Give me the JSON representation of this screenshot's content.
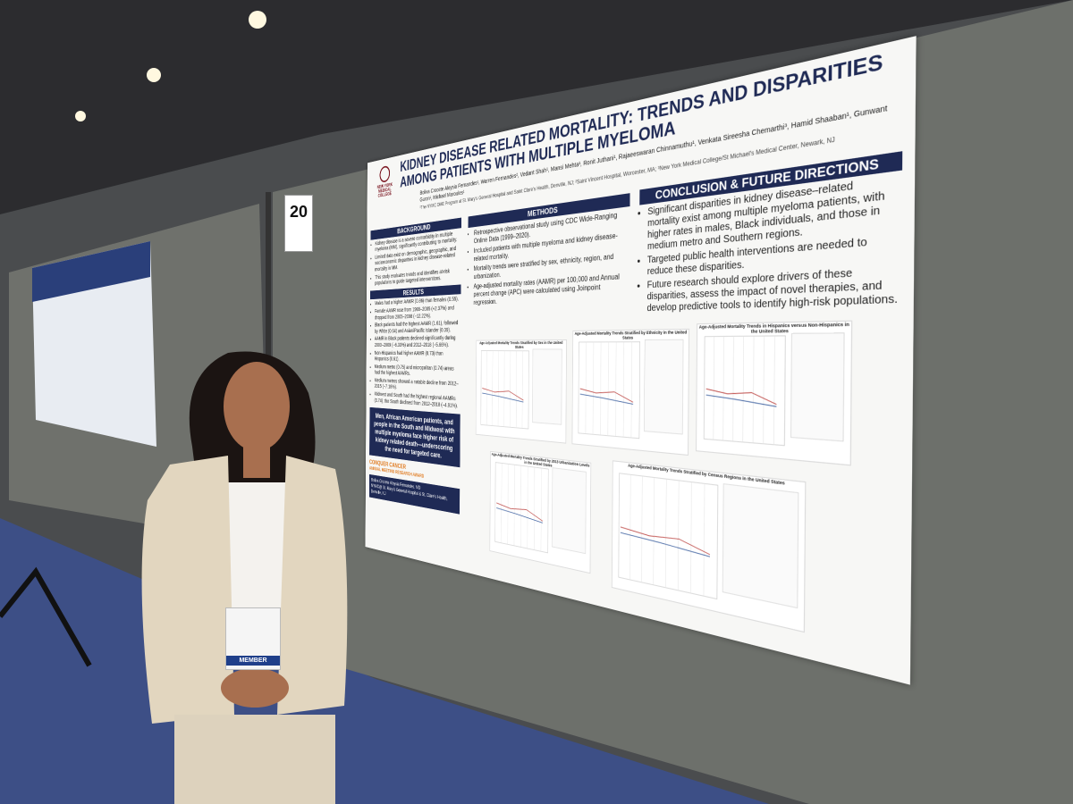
{
  "board_number": "20",
  "poster": {
    "logo": "NEW YORK MEDICAL COLLEGE",
    "title": "KIDNEY DISEASE RELATED MORTALITY: TRENDS AND DISPARITIES AMONG PATIENTS WITH MULTIPLE MYELOMA",
    "authors": "Boliva Crocete Aloysia Fernandes¹, Warren Fernandes², Vedant Shah¹, Mansi Mehta¹, Ronit Juthani¹, Rajaeeswaran Chinnamuthu¹, Venkata Sireesha Chemarthi³, Hamid Shaaban¹, Gunwant Guron¹, Michael Maroules¹",
    "affiliations": "¹The NYMC DME Program at St. Mary's General Hospital and Saint Clare's Health, Denville, NJ; ²Saint Vincent Hospital, Worcester, MA; ³New York Medical College/St Michael's Medical Center, Newark, NJ",
    "background": {
      "heading": "BACKGROUND",
      "bullets": [
        "Kidney disease is a severe comorbidity in multiple myeloma (MM), significantly contributing to mortality.",
        "Limited data exist on demographic, geographic, and socioeconomic disparities in kidney disease-related mortality in MM.",
        "This study evaluates trends and identifies at-risk populations to guide targeted interventions."
      ]
    },
    "results": {
      "heading": "RESULTS",
      "bullets": [
        "Males had a higher AAMR (0.86) than females (0.55).",
        "Female AAMR rose from 1999–2005 (+2.37%) and dropped from 2005–2008 (−12.22%).",
        "Black patients had the highest AAMR (1.61), followed by White (0.64) and Asian/Pacific Islander (0.39).",
        "AAMR in Black patients declined significantly during 2003–2009 (−6.33%) and 2012–2018 (−5.66%).",
        "Non-Hispanics had higher AAMR (0.73) than Hispanics (0.61).",
        "Medium metro (0.75) and micropolitan (0.74) areas had the highest AAMRs.",
        "Medium metros showed a notable decline from 2012–2015 (−7.16%).",
        "Midwest and South had the highest regional AAMRs (0.74); the South declined from 2012–2018 (−4.91%)."
      ]
    },
    "highlight": "Men, African American patients, and people in the South and Midwest with multiple myeloma face higher risk of kidney related death—underscoring the need for targeted care.",
    "award": [
      "CONQUER CANCER",
      "ANNUAL MEETING RESEARCH AWARD"
    ],
    "contact": [
      "Boliva Crocete Aloysia Fernandes, MD",
      "NYMC@ St. Mary's General Hospital & St. Clare's Health,",
      "Denville, NJ"
    ],
    "methods": {
      "heading": "METHODS",
      "bullets": [
        "Retrospective observational study using CDC Wide-Ranging Online Data (1999–2020).",
        "Included patients with multiple myeloma and kidney disease-related mortality.",
        "Mortality trends were stratified by sex, ethnicity, region, and urbanization.",
        "Age-adjusted mortality rates (AAMR) per 100,000 and Annual percent change (APC) were calculated using Joinpoint regression."
      ]
    },
    "conclusion": {
      "heading": "CONCLUSION & FUTURE DIRECTIONS",
      "bullets": [
        "Significant disparities in kidney disease–related mortality exist among multiple myeloma patients, with higher rates in males, Black individuals, and those in medium metro and Southern regions.",
        "Targeted public health interventions are needed to reduce these disparities.",
        "Future research should explore drivers of these disparities, assess the impact of novel therapies, and develop predictive tools to identify high-risk populations."
      ]
    },
    "charts": [
      "Age-Adjusted Mortality Trends Stratified by Sex in the United States",
      "Age-Adjusted Mortality Trends Stratified by Ethnicity in the United States",
      "Age-Adjusted Mortality Trends in Hispanics versus Non-Hispanics in the United States",
      "Age-Adjusted Mortality Trends Stratified by 2013 Urbanization Levels in the United States",
      "Age-Adjusted Mortality Trends Stratified by Census Regions in the United States"
    ]
  },
  "badge": "MEMBER"
}
